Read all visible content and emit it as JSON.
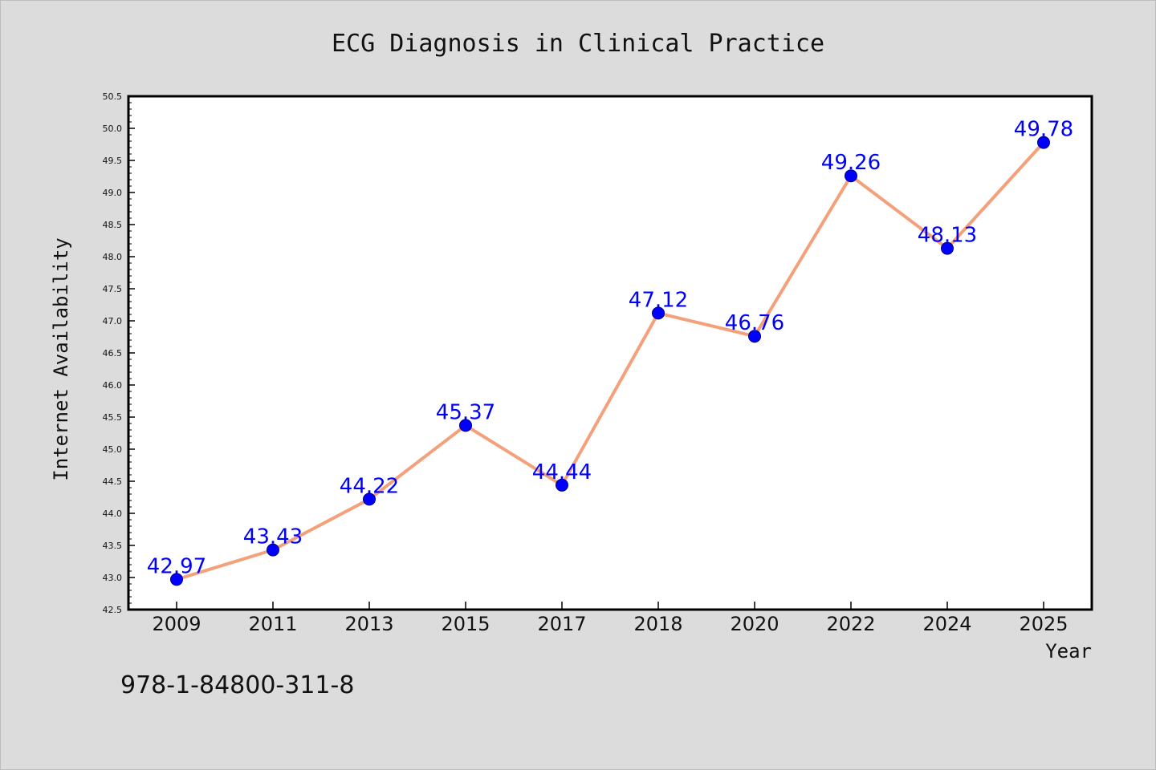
{
  "chart_data": {
    "type": "line",
    "title": "ECG Diagnosis in Clinical Practice",
    "xlabel": "Year",
    "ylabel": "Internet Availability",
    "categories": [
      "2009",
      "2011",
      "2013",
      "2015",
      "2017",
      "2018",
      "2020",
      "2022",
      "2024",
      "2025"
    ],
    "series": [
      {
        "values": [
          42.97,
          43.43,
          44.22,
          45.37,
          44.44,
          47.12,
          46.76,
          49.26,
          48.13,
          49.78
        ],
        "labels": [
          "42.97",
          "43.43",
          "44.22",
          "45.37",
          "44.44",
          "47.12",
          "46.76",
          "49.26",
          "48.13",
          "49.78"
        ]
      }
    ],
    "ylim": [
      42.5,
      50.5
    ],
    "ytick_labels": [
      "42.5",
      "43.0",
      "43.5",
      "44.0",
      "44.5",
      "45.0",
      "45.5",
      "46.0",
      "46.5",
      "47.0",
      "47.5",
      "48.0",
      "48.5",
      "49.0",
      "49.5",
      "50.0",
      "50.5"
    ],
    "grid": false,
    "legend": "none",
    "colors": {
      "line": "#f4a07a",
      "marker": "#0000ff",
      "data_label": "#0000ff",
      "plot_background": "#ffffff",
      "figure_background": "#dcdcdc"
    }
  },
  "footer": {
    "isbn": "978-1-84800-311-8"
  }
}
